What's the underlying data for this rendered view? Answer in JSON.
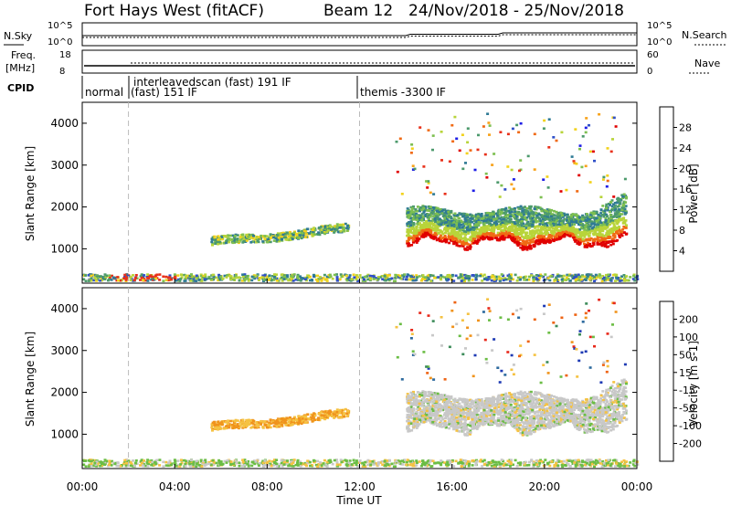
{
  "header": {
    "radar": "Fort Hays West (fitACF)",
    "beam": "Beam 12",
    "dates": "24/Nov/2018 - 25/Nov/2018"
  },
  "noise_panel": {
    "left_label": "N.Sky",
    "left_ticks": [
      "10^5",
      "10^0"
    ],
    "right_label": "N.Search",
    "right_ticks": [
      "10^5",
      "10^0"
    ]
  },
  "freq_panel": {
    "left_label_1": "Freq.",
    "left_label_2": "[MHz]",
    "left_ticks": [
      "18",
      "8"
    ],
    "right_label": "Nave",
    "right_ticks": [
      "60",
      "0"
    ]
  },
  "cpid_panel": {
    "label": "CPID",
    "modes": [
      {
        "name": "normal",
        "start_hour": 0
      },
      {
        "name": "interleavedscan (fast) 191 IF",
        "start_hour": 2
      },
      {
        "name": "(fast) 151 IF",
        "start_hour": 2
      },
      {
        "name": "themis -3300 IF",
        "start_hour": 12
      }
    ]
  },
  "chart_data": [
    {
      "type": "heatmap",
      "name": "power",
      "ylabel": "Slant Range [km]",
      "ylim": [
        180,
        4500
      ],
      "yticks": [
        1000,
        2000,
        3000,
        4000
      ],
      "xlim": [
        0,
        24
      ],
      "colorbar_label": "Power [dB]",
      "colorbar_ticks": [
        "28",
        "24",
        "20",
        "16",
        "12",
        "8",
        "4"
      ],
      "colorbar_colors": [
        "#1e1ee6",
        "#3050c8",
        "#2f7a95",
        "#4c9a6c",
        "#7dbf50",
        "#b8d43a",
        "#f2d21c",
        "#f7a21a",
        "#f06a14",
        "#e8301a",
        "#e00000"
      ],
      "grid": false,
      "features": [
        {
          "desc": "near-range clutter",
          "t_start": 0,
          "t_end": 24,
          "r_min": 200,
          "r_max": 350
        },
        {
          "desc": "rising echo band",
          "t_start": 5.5,
          "t_end": 11.5,
          "r_start": 1100,
          "r_end": 1450
        },
        {
          "desc": "dense evening band",
          "t_start": 14,
          "t_end": 23.5,
          "r_min": 1000,
          "r_max": 2200
        }
      ]
    },
    {
      "type": "heatmap",
      "name": "velocity",
      "ylabel": "Slant Range [km]",
      "ylim": [
        180,
        4500
      ],
      "yticks": [
        1000,
        2000,
        3000,
        4000
      ],
      "xlim": [
        0,
        24
      ],
      "colorbar_label": "Velocity [m s-1]",
      "colorbar_ticks": [
        "200",
        "100",
        "50",
        "15",
        "-15",
        "-50",
        "-100",
        "-200"
      ],
      "colorbar_colors": [
        "#1e3ab4",
        "#2d6a9e",
        "#3d8c5a",
        "#6bbd45",
        "#c8c8c8",
        "#f5c242",
        "#f0931c",
        "#ee6414",
        "#e8281a"
      ],
      "grid": false
    }
  ],
  "x_axis": {
    "ticks": [
      "00:00",
      "04:00",
      "08:00",
      "12:00",
      "16:00",
      "20:00",
      "00:00"
    ],
    "label": "Time UT"
  },
  "dashed_lines_hours": [
    2,
    12
  ]
}
